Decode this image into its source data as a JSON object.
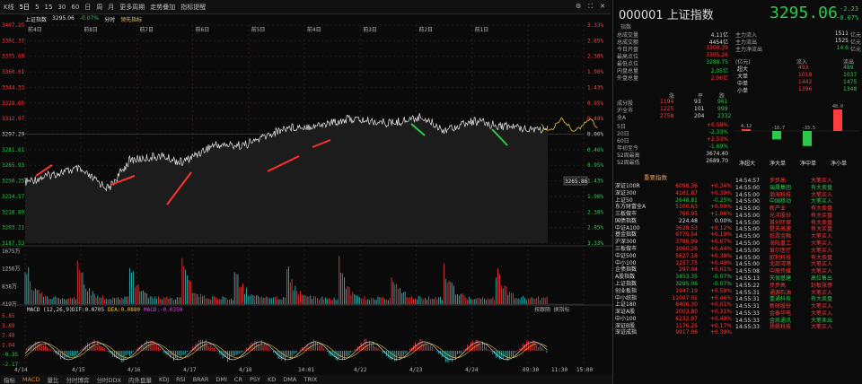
{
  "toolbar": {
    "items": [
      "K线",
      "5日",
      "5",
      "15",
      "30",
      "60",
      "日",
      "周",
      "月",
      "更多周期",
      "走势叠加",
      "指标提醒"
    ],
    "right_icons": [
      "settings-icon",
      "fullscreen-icon",
      "close-icon"
    ]
  },
  "legend": {
    "name": "上证指数",
    "price": "3295.06",
    "pct": "-0.07%",
    "label1": "分时",
    "label2": "领先指标"
  },
  "chart": {
    "y_labels": [
      "3407.25",
      "3391.37",
      "3375.69",
      "3360.01",
      "3344.33",
      "3328.65",
      "3312.97",
      "3297.29",
      "3281.61",
      "3265.93",
      "3250.25",
      "3234.57",
      "3218.89",
      "3203.21",
      "3187.53"
    ],
    "pct_labels": [
      "3.33%",
      "2.85%",
      "2.38%",
      "1.90%",
      "1.43%",
      "0.95%",
      "0.48%",
      "0.00%",
      "0.46%",
      "0.95%",
      "1.43%",
      "1.90%",
      "2.38%",
      "2.85%",
      "3.33%"
    ],
    "day_labels": [
      "前4日",
      "前8日",
      "前7日",
      "前6日",
      "前5日",
      "前4日",
      "前3日",
      "前2日",
      "前1日"
    ],
    "current_tag": "3265.86",
    "vol_labels": [
      "1675万",
      "1256万",
      "838万",
      "419万"
    ],
    "macd_header": {
      "title": "MACD (12,26,9)",
      "dif": "DIF:0.0705",
      "dea": "DEA:0.0880",
      "macd": "MACD:-0.0350",
      "right": "按跟随 换指标"
    },
    "macd_labels": [
      "5.85",
      "3.89",
      "2.48",
      "1.04",
      "-0.35",
      "-2.17"
    ],
    "x_labels": [
      "4/14",
      "4/15",
      "4/16",
      "4/17",
      "4/18",
      "14:01",
      "4/22",
      "4/23",
      "4/24",
      "09:30",
      "11:30",
      "15:00"
    ]
  },
  "bottom_tabs": [
    "指标",
    "MACD",
    "量比",
    "分时博弈",
    "分时DDX",
    "内外盘量",
    "KDJ",
    "RSI",
    "BRAR",
    "DMI",
    "CR",
    "PSY",
    "KD",
    "DMA",
    "TRIX"
  ],
  "quote": {
    "code_name": "000001 上证指数",
    "sub": "指数",
    "price": "3295.06",
    "change": "-2.23",
    "change_pct": "-0.07%",
    "left_kv": [
      {
        "k": "总成交量",
        "v": "4.11亿",
        "c": "white"
      },
      {
        "k": "总成交额",
        "v": "4454亿",
        "c": "white"
      },
      {
        "k": "今日开盘",
        "v": "3300.39",
        "c": "red"
      },
      {
        "k": "最高点位",
        "v": "3305.26",
        "c": "red"
      },
      {
        "k": "最低点位",
        "v": "3288.75",
        "c": "green"
      },
      {
        "k": "内盘总量",
        "v": "2.05亿",
        "c": "green"
      },
      {
        "k": "外盘总量",
        "v": "2.06亿",
        "c": "red"
      }
    ],
    "right_kv": [
      {
        "k": "主力流入",
        "v": "1511",
        "u": "亿元",
        "c": "white"
      },
      {
        "k": "主力流出",
        "v": "1525",
        "u": "亿元",
        "c": "white"
      },
      {
        "k": "主力净流出",
        "v": "14.6",
        "u": "亿元",
        "c": "green"
      }
    ],
    "flow_header": [
      "(亿元)",
      "流入",
      "流出"
    ],
    "flow_rows": [
      {
        "k": "超大",
        "in": "493",
        "out": "489"
      },
      {
        "k": "大单",
        "in": "1018",
        "out": "1037"
      },
      {
        "k": "中单",
        "in": "1442",
        "out": "1475"
      },
      {
        "k": "小单",
        "in": "1396",
        "out": "1348"
      }
    ],
    "updown_header": [
      "涨",
      "平",
      "跌"
    ],
    "updown_rows": [
      {
        "k": "成分股",
        "a": "1194",
        "b": "93",
        "c": "961"
      },
      {
        "k": "沪全市",
        "a": "1225",
        "b": "101",
        "c": "999"
      },
      {
        "k": "全A",
        "a": "2758",
        "b": "204",
        "c": "2332"
      }
    ],
    "period_rows": [
      {
        "k": "5日",
        "v": "+0.58%",
        "c": "red"
      },
      {
        "k": "20日",
        "v": "-2.33%",
        "c": "green"
      },
      {
        "k": "60日",
        "v": "+2.53%",
        "c": "red"
      },
      {
        "k": "年初至今",
        "v": "-1.69%",
        "c": "green"
      },
      {
        "k": "52周最高",
        "v": "3674.40",
        "c": "white"
      },
      {
        "k": "52周最低",
        "v": "2689.70",
        "c": "white"
      }
    ],
    "flow_bars": [
      {
        "label": "净超大",
        "value": 4.12,
        "text": "4.12"
      },
      {
        "label": "净大单",
        "value": -18.7,
        "text": "-18.7"
      },
      {
        "label": "净中单",
        "value": -33.5,
        "text": "-33.5"
      },
      {
        "label": "净小单",
        "value": 48.0,
        "text": "48.0"
      }
    ]
  },
  "indices_title": "重要指数",
  "indices": [
    {
      "n": "深证100R",
      "p": "6098.36",
      "c": "+0.34%"
    },
    {
      "n": "深证300",
      "p": "4161.87",
      "c": "+0.39%"
    },
    {
      "n": "上证50",
      "p": "2648.81",
      "c": "-0.25%"
    },
    {
      "n": "东方财富全A",
      "p": "5100.63",
      "c": "+0.09%"
    },
    {
      "n": "三板做市",
      "p": "760.95",
      "c": "+1.06%"
    },
    {
      "n": "国债指数",
      "p": "224.48",
      "c": "0.00%"
    },
    {
      "n": "中证A100",
      "p": "3628.53",
      "c": "+0.12%"
    },
    {
      "n": "基金指数",
      "p": "6775.54",
      "c": "+0.19%"
    },
    {
      "n": "沪深300",
      "p": "3786.99",
      "c": "+0.07%"
    },
    {
      "n": "三板做市",
      "p": "1060.26",
      "c": "+0.44%"
    },
    {
      "n": "中证500",
      "p": "5627.18",
      "c": "+0.38%"
    },
    {
      "n": "中小100",
      "p": "1257.75",
      "c": "+0.49%"
    },
    {
      "n": "企债指数",
      "p": "297.04",
      "c": "+0.01%"
    },
    {
      "n": "A股指数",
      "p": "3453.35",
      "c": "-0.07%"
    },
    {
      "n": "上证指数",
      "p": "3295.06",
      "c": "-0.07%"
    },
    {
      "n": "创业板指",
      "p": "1947.19",
      "c": "+0.59%"
    },
    {
      "n": "中小综指",
      "p": "11007.02",
      "c": "+0.46%"
    },
    {
      "n": "上证180",
      "p": "8406.30",
      "c": "+0.01%"
    },
    {
      "n": "深证A股",
      "p": "2003.80",
      "c": "+0.31%"
    },
    {
      "n": "中小100",
      "p": "6232.97",
      "c": "+0.49%"
    },
    {
      "n": "深证B股",
      "p": "1176.25",
      "c": "+0.17%"
    },
    {
      "n": "深证成指",
      "p": "9917.06",
      "c": "+0.39%"
    }
  ],
  "trades": [
    {
      "t": "14:54:57",
      "n": "步步高",
      "a": "大笔买入",
      "c": "red"
    },
    {
      "t": "14:55:00",
      "n": "瑞晟集团",
      "a": "有大卖盘",
      "c": "green"
    },
    {
      "t": "14:55:00",
      "n": "渤海科技",
      "a": "大笔买入",
      "c": "red"
    },
    {
      "t": "14:55:00",
      "n": "中国移动",
      "a": "大笔买入",
      "c": "green"
    },
    {
      "t": "14:55:00",
      "n": "新产业",
      "a": "有大卖盘",
      "c": "red"
    },
    {
      "t": "14:55:00",
      "n": "光洋股份",
      "a": "有大买盘",
      "c": "red"
    },
    {
      "t": "14:55:00",
      "n": "首创环保",
      "a": "有大卖盘",
      "c": "red"
    },
    {
      "t": "14:55:00",
      "n": "楚天高速",
      "a": "有大买盘",
      "c": "red"
    },
    {
      "t": "14:55:00",
      "n": "狂霞金融",
      "a": "大笔买入",
      "c": "red"
    },
    {
      "t": "14:55:00",
      "n": "海陆重工",
      "a": "大笔买入",
      "c": "red"
    },
    {
      "t": "14:55:00",
      "n": "爱尔医疗",
      "a": "大笔买入",
      "c": "red"
    },
    {
      "t": "14:55:00",
      "n": "欧利科技",
      "a": "有大卖盘",
      "c": "red"
    },
    {
      "t": "14:55:00",
      "n": "北部湾港",
      "a": "大笔买入",
      "c": "red"
    },
    {
      "t": "14:55:08",
      "n": "中原传媒",
      "a": "大笔买入",
      "c": "red"
    },
    {
      "t": "14:55:13",
      "n": "天保基建",
      "a": "高位售出",
      "c": "green"
    },
    {
      "t": "14:55:22",
      "n": "步步高",
      "a": "封板涨停",
      "c": "red"
    },
    {
      "t": "14:55:31",
      "n": "通源石油",
      "a": "大笔买入",
      "c": "red"
    },
    {
      "t": "14:55:31",
      "n": "重通科技",
      "a": "有大卖盘",
      "c": "green"
    },
    {
      "t": "14:55:31",
      "n": "新研股份",
      "a": "大笔买入",
      "c": "red"
    },
    {
      "t": "14:55:33",
      "n": "金泰华电",
      "a": "大笔买入",
      "c": "red"
    },
    {
      "t": "14:55:33",
      "n": "金凯通讯",
      "a": "大笔卖出",
      "c": "green"
    },
    {
      "t": "14:55:33",
      "n": "扬帆科技",
      "a": "大笔买入",
      "c": "red"
    }
  ]
}
